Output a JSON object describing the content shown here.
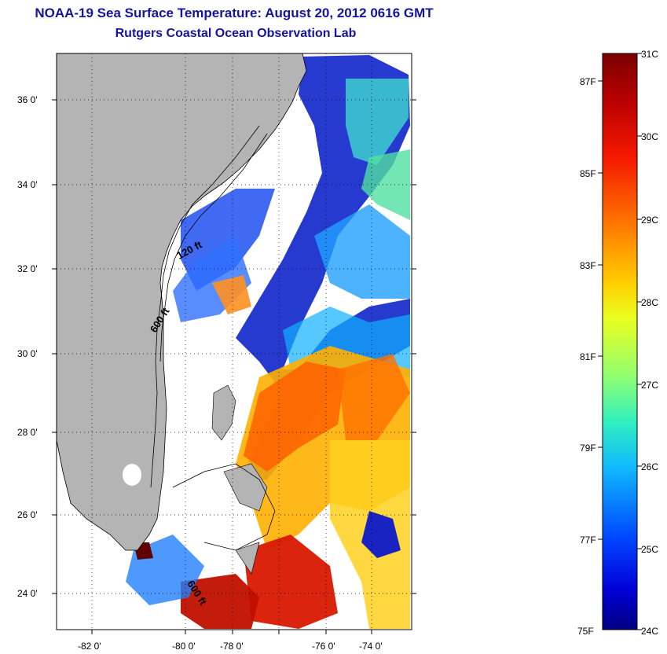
{
  "title": "NOAA-19 Sea Surface Temperature:  August 20, 2012 0616 GMT",
  "subtitle": "Rutgers Coastal Ocean Observation Lab",
  "map": {
    "lat_labels": [
      "36 0'",
      "34 0'",
      "32 0'",
      "30 0'",
      "28 0'",
      "26 0'",
      "24 0'"
    ],
    "lon_labels": [
      "-82 0'",
      "-80 0'",
      "-78 0'",
      "-76 0'",
      "-74 0'"
    ],
    "contour_labels": [
      "120 ft",
      "600 ft",
      "600 ft"
    ],
    "land_color": "#b4b4b4"
  },
  "colorbar": {
    "celsius_labels": [
      "31C",
      "30C",
      "29C",
      "28C",
      "27C",
      "26C",
      "25C",
      "24C"
    ],
    "fahrenheit_labels": [
      "87F",
      "85F",
      "83F",
      "81F",
      "79F",
      "77F",
      "75F"
    ],
    "colors": [
      "#7a0000",
      "#b50000",
      "#f01000",
      "#ff5a00",
      "#ffa000",
      "#ffe000",
      "#c8ff30",
      "#70ff80",
      "#20e8d0",
      "#10a8ff",
      "#0050ff",
      "#0000d0",
      "#000080"
    ]
  }
}
